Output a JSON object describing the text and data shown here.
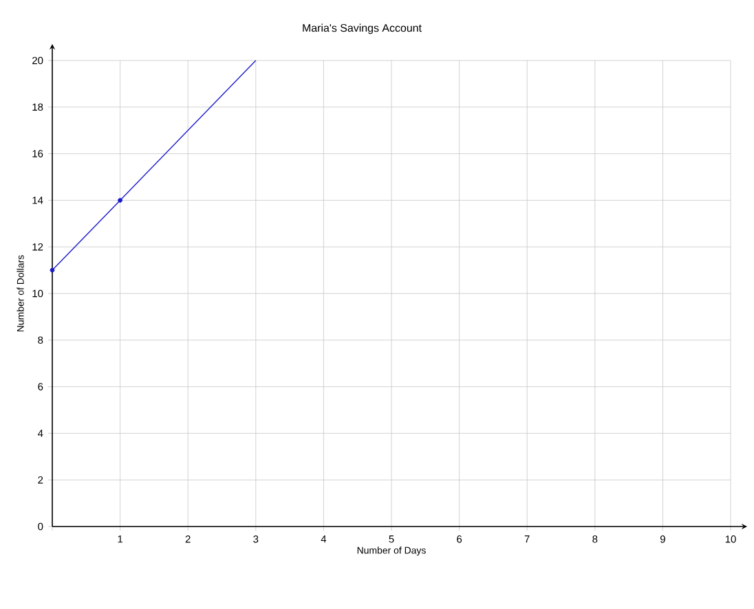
{
  "chart_data": {
    "type": "line",
    "title": "Maria's Savings Account",
    "xlabel": "Number of Days",
    "ylabel": "Number of Dollars",
    "series": [
      {
        "color": "#1a1acc",
        "x": [
          0,
          1,
          3
        ],
        "values": [
          11,
          14,
          20
        ],
        "marker": "none"
      },
      {
        "type": "scatter",
        "color": "#1a1acc",
        "x": [
          0,
          1
        ],
        "values": [
          11,
          14
        ],
        "marker": "circle"
      }
    ],
    "xlim": [
      0,
      10
    ],
    "ylim": [
      0,
      20
    ],
    "xticks": [
      {
        "value": 0,
        "label": null
      },
      1,
      2,
      3,
      4,
      5,
      6,
      7,
      8,
      9,
      10
    ],
    "yticks": [
      0,
      2,
      4,
      6,
      8,
      10,
      12,
      14,
      16,
      18,
      20
    ],
    "grid": true
  }
}
